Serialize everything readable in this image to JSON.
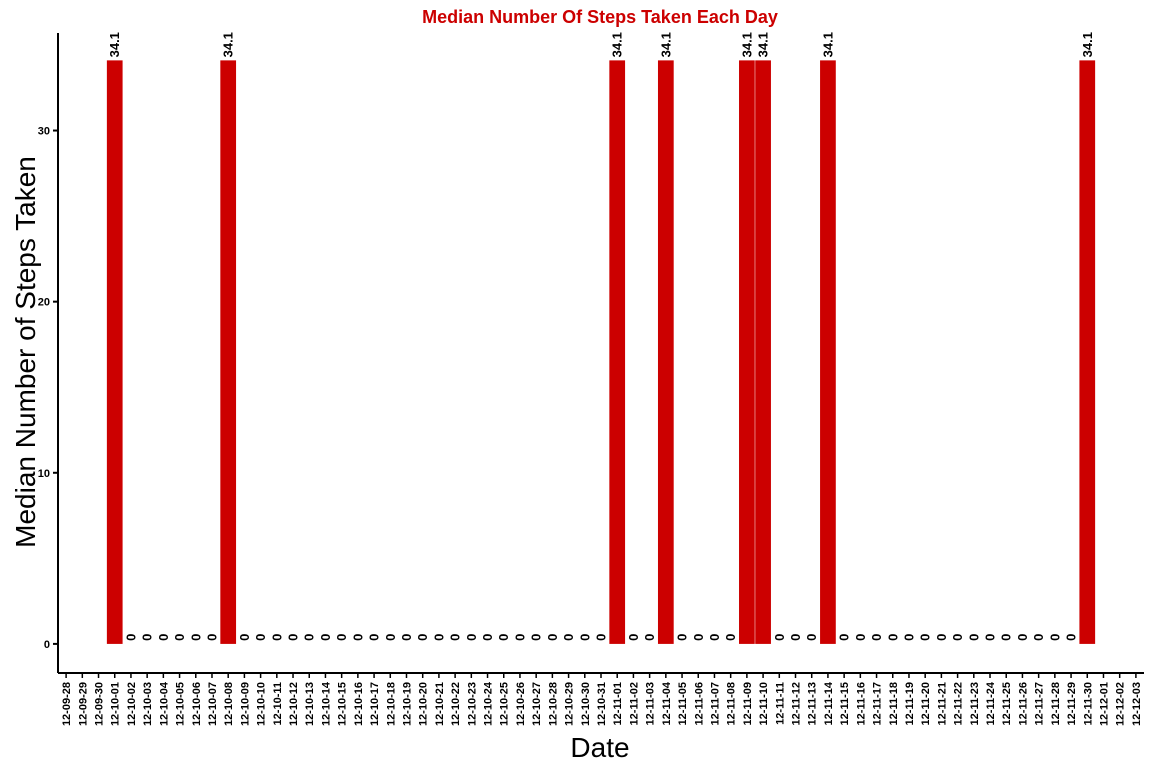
{
  "chart_data": {
    "type": "bar",
    "title": "Median  Number Of Steps Taken Each Day",
    "xlabel": "Date",
    "ylabel": "Median  Number of Steps Taken",
    "ylim": [
      -1.7,
      35.7
    ],
    "yticks": [
      0,
      10,
      20,
      30
    ],
    "grid": false,
    "legend": "none",
    "colors": {
      "bar": "#cc0000",
      "title": "#cc0000",
      "axis": "#000000"
    },
    "categories": [
      "12-09-28",
      "12-09-29",
      "12-09-30",
      "12-10-01",
      "12-10-02",
      "12-10-03",
      "12-10-04",
      "12-10-05",
      "12-10-06",
      "12-10-07",
      "12-10-08",
      "12-10-09",
      "12-10-10",
      "12-10-11",
      "12-10-12",
      "12-10-13",
      "12-10-14",
      "12-10-15",
      "12-10-16",
      "12-10-17",
      "12-10-18",
      "12-10-19",
      "12-10-20",
      "12-10-21",
      "12-10-22",
      "12-10-23",
      "12-10-24",
      "12-10-25",
      "12-10-26",
      "12-10-27",
      "12-10-28",
      "12-10-29",
      "12-10-30",
      "12-10-31",
      "12-11-01",
      "12-11-02",
      "12-11-03",
      "12-11-04",
      "12-11-05",
      "12-11-06",
      "12-11-07",
      "12-11-08",
      "12-11-09",
      "12-11-10",
      "12-11-11",
      "12-11-12",
      "12-11-13",
      "12-11-14",
      "12-11-15",
      "12-11-16",
      "12-11-17",
      "12-11-18",
      "12-11-19",
      "12-11-20",
      "12-11-21",
      "12-11-22",
      "12-11-23",
      "12-11-24",
      "12-11-25",
      "12-11-26",
      "12-11-27",
      "12-11-28",
      "12-11-29",
      "12-11-30",
      "12-12-01",
      "12-12-02",
      "12-12-03"
    ],
    "values": [
      null,
      null,
      null,
      34.1,
      0,
      0,
      0,
      0,
      0,
      0,
      34.1,
      0,
      0,
      0,
      0,
      0,
      0,
      0,
      0,
      0,
      0,
      0,
      0,
      0,
      0,
      0,
      0,
      0,
      0,
      0,
      0,
      0,
      0,
      0,
      34.1,
      0,
      0,
      34.1,
      0,
      0,
      0,
      0,
      34.1,
      34.1,
      0,
      0,
      0,
      34.1,
      0,
      0,
      0,
      0,
      0,
      0,
      0,
      0,
      0,
      0,
      0,
      0,
      0,
      0,
      0,
      34.1,
      null,
      null,
      null
    ],
    "value_labels": [
      null,
      null,
      null,
      "34.1",
      "0",
      "0",
      "0",
      "0",
      "0",
      "0",
      "34.1",
      "0",
      "0",
      "0",
      "0",
      "0",
      "0",
      "0",
      "0",
      "0",
      "0",
      "0",
      "0",
      "0",
      "0",
      "0",
      "0",
      "0",
      "0",
      "0",
      "0",
      "0",
      "0",
      "0",
      "34.1",
      "0",
      "0",
      "34.1",
      "0",
      "0",
      "0",
      "0",
      "34.1",
      "34.1",
      "0",
      "0",
      "0",
      "34.1",
      "0",
      "0",
      "0",
      "0",
      "0",
      "0",
      "0",
      "0",
      "0",
      "0",
      "0",
      "0",
      "0",
      "0",
      "0",
      "34.1",
      null,
      null,
      null
    ]
  }
}
